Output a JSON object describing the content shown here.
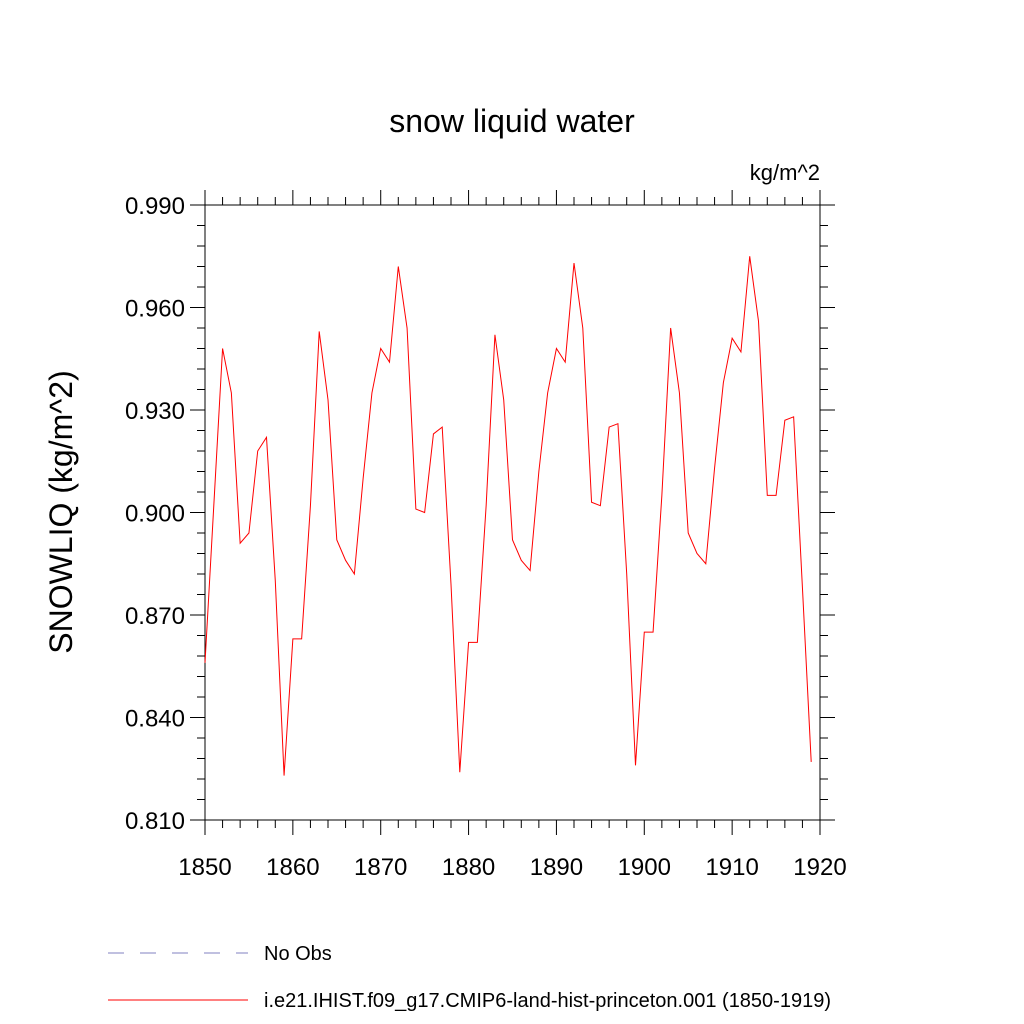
{
  "chart_data": {
    "type": "line",
    "title": "snow liquid water",
    "units_label": "kg/m^2",
    "ylabel": "SNOWLIQ  (kg/m^2)",
    "xlabel": "",
    "xlim": [
      1850,
      1920
    ],
    "ylim": [
      0.81,
      0.99
    ],
    "xticks": [
      "1850",
      "1860",
      "1870",
      "1880",
      "1890",
      "1900",
      "1910",
      "1920"
    ],
    "yticks": [
      "0.810",
      "0.840",
      "0.870",
      "0.900",
      "0.930",
      "0.960",
      "0.990"
    ],
    "grid": false,
    "legend_position": "bottom",
    "legend": [
      {
        "label": "No Obs",
        "color": "#8080c0",
        "style": "dashed"
      },
      {
        "label": "i.e21.IHIST.f09_g17.CMIP6-land-hist-princeton.001 (1850-1919)",
        "color": "#ff0000",
        "style": "solid"
      }
    ],
    "series": [
      {
        "name": "i.e21.IHIST.f09_g17.CMIP6-land-hist-princeton.001 (1850-1919)",
        "color": "#ff0000",
        "x": [
          1850,
          1851,
          1852,
          1853,
          1854,
          1855,
          1856,
          1857,
          1858,
          1859,
          1860,
          1861,
          1862,
          1863,
          1864,
          1865,
          1866,
          1867,
          1868,
          1869,
          1870,
          1871,
          1872,
          1873,
          1874,
          1875,
          1876,
          1877,
          1878,
          1879,
          1880,
          1881,
          1882,
          1883,
          1884,
          1885,
          1886,
          1887,
          1888,
          1889,
          1890,
          1891,
          1892,
          1893,
          1894,
          1895,
          1896,
          1897,
          1898,
          1899,
          1900,
          1901,
          1902,
          1903,
          1904,
          1905,
          1906,
          1907,
          1908,
          1909,
          1910,
          1911,
          1912,
          1913,
          1914,
          1915,
          1916,
          1917,
          1918,
          1919
        ],
        "values": [
          0.856,
          0.902,
          0.948,
          0.935,
          0.891,
          0.894,
          0.918,
          0.922,
          0.88,
          0.823,
          0.863,
          0.863,
          0.902,
          0.953,
          0.933,
          0.892,
          0.886,
          0.882,
          0.91,
          0.935,
          0.948,
          0.944,
          0.972,
          0.954,
          0.901,
          0.9,
          0.923,
          0.925,
          0.879,
          0.824,
          0.862,
          0.862,
          0.902,
          0.952,
          0.933,
          0.892,
          0.886,
          0.883,
          0.912,
          0.935,
          0.948,
          0.944,
          0.973,
          0.954,
          0.903,
          0.902,
          0.925,
          0.926,
          0.882,
          0.826,
          0.865,
          0.865,
          0.905,
          0.954,
          0.935,
          0.894,
          0.888,
          0.885,
          0.913,
          0.938,
          0.951,
          0.947,
          0.975,
          0.956,
          0.905,
          0.905,
          0.927,
          0.928,
          0.878,
          0.827
        ]
      }
    ]
  }
}
